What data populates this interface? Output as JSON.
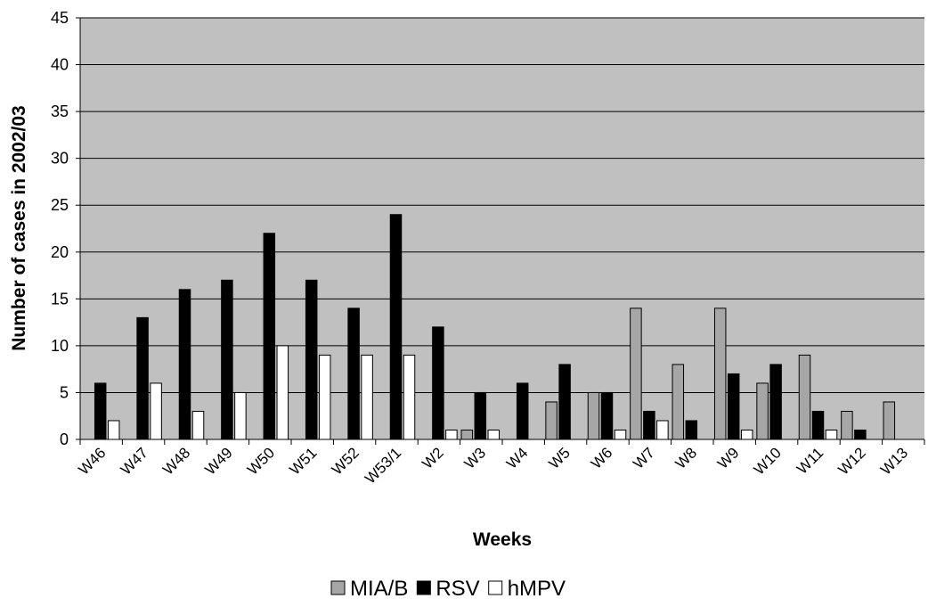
{
  "chart_data": {
    "type": "bar",
    "title": "",
    "xlabel": "Weeks",
    "ylabel": "Number of cases in 2002/03",
    "ylim": [
      0,
      45
    ],
    "yticks": [
      0,
      5,
      10,
      15,
      20,
      25,
      30,
      35,
      40,
      45
    ],
    "grid": true,
    "legend_position": "bottom",
    "plot_background": "#c0c0c0",
    "categories": [
      "W46",
      "W47",
      "W48",
      "W49",
      "W50",
      "W51",
      "W52",
      "W53/1",
      "W2",
      "W3",
      "W4",
      "W5",
      "W6",
      "W7",
      "W8",
      "W9",
      "W10",
      "W11",
      "W12",
      "W13"
    ],
    "series": [
      {
        "name": "MIA/B",
        "color": "#a6a6a6",
        "values": [
          0,
          0,
          0,
          0,
          0,
          0,
          0,
          0,
          0,
          1,
          0,
          4,
          5,
          14,
          8,
          14,
          6,
          9,
          3,
          4
        ]
      },
      {
        "name": "RSV",
        "color": "#000000",
        "values": [
          6,
          13,
          16,
          17,
          22,
          17,
          14,
          24,
          12,
          5,
          6,
          8,
          5,
          3,
          2,
          7,
          8,
          3,
          1,
          0
        ]
      },
      {
        "name": "hMPV",
        "color": "#ffffff",
        "values": [
          2,
          6,
          3,
          5,
          10,
          9,
          9,
          9,
          1,
          1,
          0,
          0,
          1,
          2,
          0,
          1,
          0,
          1,
          0,
          0
        ]
      }
    ]
  }
}
